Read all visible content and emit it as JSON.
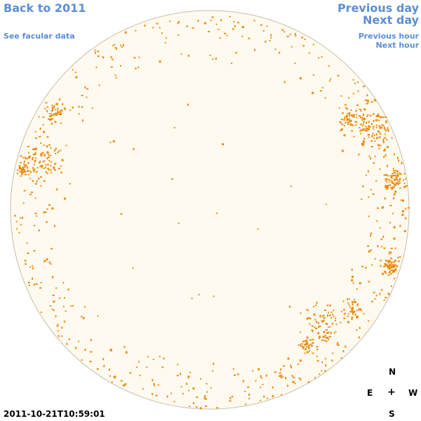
{
  "nav": {
    "back_label": "Back to 2011",
    "facular_label": "See facular data",
    "prev_day_label": "Previous day",
    "next_day_label": "Next day",
    "prev_hour_label": "Previous hour",
    "next_hour_label": "Next hour"
  },
  "compass": {
    "north": "N",
    "east": "E",
    "west": "W",
    "south": "S",
    "center": "+"
  },
  "timestamp": "2011-10-21T10:59:01",
  "colors": {
    "link": "#5b8fd6",
    "disk_fill": "#fffaf0",
    "disk_border": "#c9bda5",
    "facula": "#ee8a10",
    "background": "#ffffff"
  },
  "icons": {
    "disk": "solar-disk-icon",
    "compass_center": "plus-icon"
  }
}
